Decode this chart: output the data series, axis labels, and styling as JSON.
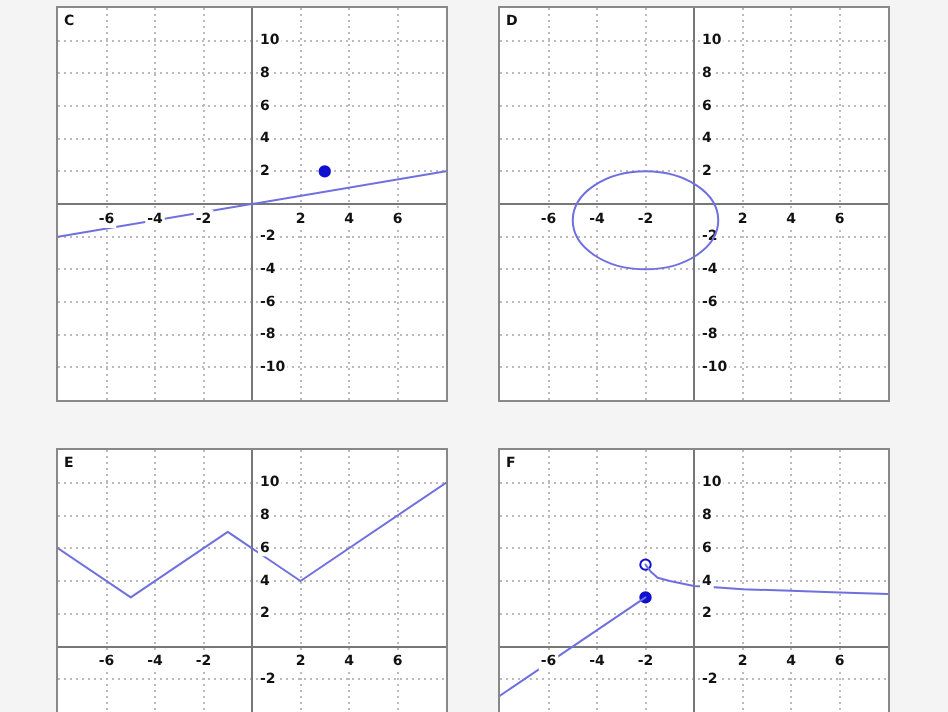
{
  "chart_data": [
    {
      "type": "line",
      "title": "C",
      "xlim": [
        -8,
        8
      ],
      "ylim": [
        -12,
        12
      ],
      "xticks": [
        -6,
        -4,
        -2,
        2,
        4,
        6
      ],
      "yticks": [
        -10,
        -8,
        -6,
        -4,
        -2,
        2,
        4,
        6,
        8,
        10
      ],
      "grid": true,
      "series": [
        {
          "type": "line",
          "color": "#6f6fe0",
          "marker": "none",
          "x": [
            -8,
            8
          ],
          "values": [
            -2,
            2
          ]
        },
        {
          "type": "scatter",
          "color": "#1010d0",
          "marker": "circle",
          "x": [
            3
          ],
          "values": [
            2
          ]
        }
      ]
    },
    {
      "type": "line",
      "title": "D",
      "xlim": [
        -8,
        8
      ],
      "ylim": [
        -12,
        12
      ],
      "xticks": [
        -6,
        -4,
        -2,
        2,
        4,
        6
      ],
      "yticks": [
        -10,
        -8,
        -6,
        -4,
        -2,
        2,
        4,
        6,
        8,
        10
      ],
      "grid": true
    },
    {
      "type": "line",
      "title": "E",
      "xlim": [
        -8,
        8
      ],
      "ylim": [
        -4,
        12
      ],
      "xticks": [
        -6,
        -4,
        -2,
        2,
        4,
        6
      ],
      "yticks": [
        -2,
        2,
        4,
        6,
        8,
        10
      ],
      "grid": true,
      "series": [
        {
          "type": "line",
          "color": "#6f6fe0",
          "marker": "none",
          "x": [
            -8,
            -5,
            -1,
            2,
            8
          ],
          "values": [
            6,
            3,
            7,
            4,
            10
          ]
        }
      ]
    },
    {
      "type": "line",
      "title": "F",
      "xlim": [
        -8,
        8
      ],
      "ylim": [
        -4,
        12
      ],
      "xticks": [
        -6,
        -4,
        -2,
        2,
        4,
        6
      ],
      "yticks": [
        -2,
        2,
        4,
        6,
        8,
        10
      ],
      "grid": true,
      "series": [
        {
          "type": "line",
          "color": "#6f6fe0",
          "marker": "none",
          "x": [
            -8,
            -2
          ],
          "values": [
            -3,
            3
          ]
        },
        {
          "type": "line",
          "color": "#6f6fe0",
          "marker": "none",
          "x": [
            -2,
            -1.8,
            -1.5,
            -1,
            0,
            1,
            2,
            4,
            6,
            8
          ],
          "values": [
            5,
            4.6,
            4.2,
            4,
            3.7,
            3.6,
            3.5,
            3.4,
            3.3,
            3.2
          ]
        },
        {
          "type": "scatter",
          "color": "#1010d0",
          "marker": "circle",
          "x": [
            -2
          ],
          "values": [
            3
          ]
        },
        {
          "type": "scatter",
          "color": "#1010d0",
          "marker": "circle-open",
          "x": [
            -2
          ],
          "values": [
            5
          ]
        }
      ]
    }
  ]
}
